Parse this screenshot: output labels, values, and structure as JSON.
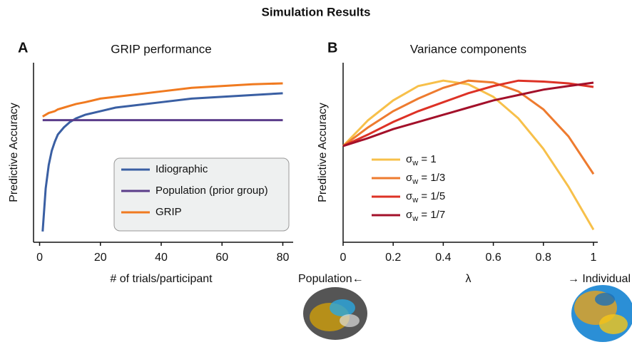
{
  "figure_title": "Simulation Results",
  "chart_data": [
    {
      "type": "line",
      "panel": "A",
      "title": "GRIP performance",
      "xlabel": "# of trials/participant",
      "ylabel": "Predictive Accuracy",
      "x": [
        1,
        2,
        3,
        4,
        5,
        6,
        8,
        10,
        12,
        15,
        20,
        25,
        30,
        40,
        50,
        60,
        70,
        80
      ],
      "xlim": [
        -2,
        82
      ],
      "ylim": [
        0,
        1
      ],
      "xticks": [
        0,
        20,
        40,
        60,
        80
      ],
      "grid": false,
      "legend": "lower-right",
      "legend_frame": true,
      "series": [
        {
          "name": "Idiographic",
          "color": "#3a5fa3",
          "values": [
            0.06,
            0.3,
            0.43,
            0.51,
            0.56,
            0.6,
            0.64,
            0.67,
            0.69,
            0.71,
            0.73,
            0.75,
            0.76,
            0.78,
            0.8,
            0.81,
            0.82,
            0.83
          ]
        },
        {
          "name": "Population (prior group)",
          "color": "#5b3d8a",
          "values": [
            0.68,
            0.68,
            0.68,
            0.68,
            0.68,
            0.68,
            0.68,
            0.68,
            0.68,
            0.68,
            0.68,
            0.68,
            0.68,
            0.68,
            0.68,
            0.68,
            0.68,
            0.68
          ]
        },
        {
          "name": "GRIP",
          "color": "#f07a20",
          "values": [
            0.7,
            0.71,
            0.72,
            0.725,
            0.73,
            0.74,
            0.75,
            0.76,
            0.77,
            0.78,
            0.8,
            0.81,
            0.82,
            0.84,
            0.86,
            0.87,
            0.88,
            0.885
          ]
        }
      ]
    },
    {
      "type": "line",
      "panel": "B",
      "title": "Variance components",
      "xlabel": "λ",
      "ylabel": "Predictive Accuracy",
      "left_annotation": "Population←",
      "right_annotation": "→ Individual",
      "x": [
        0,
        0.1,
        0.2,
        0.3,
        0.4,
        0.5,
        0.6,
        0.7,
        0.8,
        0.9,
        1
      ],
      "xlim": [
        0,
        1
      ],
      "ylim": [
        0,
        1
      ],
      "xticks": [
        0,
        0.2,
        0.4,
        0.6,
        0.8,
        1
      ],
      "grid": false,
      "legend": "lower-left",
      "legend_frame": false,
      "series": [
        {
          "name": "σw = 1",
          "color": "#f7c04a",
          "values": [
            0.536,
            0.68,
            0.79,
            0.87,
            0.9,
            0.88,
            0.81,
            0.69,
            0.52,
            0.31,
            0.07
          ]
        },
        {
          "name": "σw = 1/3",
          "color": "#ee7b2f",
          "values": [
            0.536,
            0.64,
            0.73,
            0.8,
            0.86,
            0.9,
            0.89,
            0.84,
            0.74,
            0.59,
            0.38
          ]
        },
        {
          "name": "σw = 1/5",
          "color": "#dd3226",
          "values": [
            0.536,
            0.6,
            0.67,
            0.73,
            0.78,
            0.83,
            0.87,
            0.9,
            0.895,
            0.885,
            0.865
          ]
        },
        {
          "name": "σw = 1/7",
          "color": "#a3102a",
          "values": [
            0.536,
            0.58,
            0.63,
            0.67,
            0.71,
            0.75,
            0.79,
            0.82,
            0.85,
            0.87,
            0.889
          ]
        }
      ]
    }
  ]
}
